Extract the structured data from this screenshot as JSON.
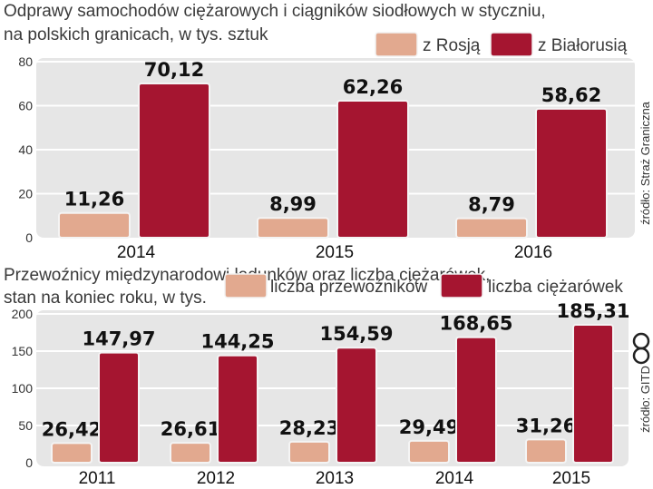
{
  "colors": {
    "russia": "#e2a98f",
    "belarus": "#a51530",
    "panel": "#e6e6e6",
    "grid": "#ffffff"
  },
  "chart_data": [
    {
      "type": "bar",
      "title_lines": [
        "Odprawy samochodów ciężarowych i ciągników siodłowych w styczniu,",
        "na polskich granicach, w tys. sztuk"
      ],
      "categories": [
        "2014",
        "2015",
        "2016"
      ],
      "series": [
        {
          "name": "z Rosją",
          "values": [
            11.26,
            8.99,
            8.79
          ],
          "labels": [
            "11,26",
            "8,99",
            "8,79"
          ]
        },
        {
          "name": "z Białorusią",
          "values": [
            70.12,
            62.26,
            58.62
          ],
          "labels": [
            "70,12",
            "62,26",
            "58,62"
          ]
        }
      ],
      "yticks": [
        "0",
        "20",
        "40",
        "60",
        "80"
      ],
      "ylim": [
        0,
        80
      ],
      "grid": true,
      "legend": "top-right",
      "source": "źródło: Straż Graniczna"
    },
    {
      "type": "bar",
      "title_lines": [
        "Przewoźnicy międzynarodowi ładunków oraz liczba ciężarówek,",
        "stan na koniec roku, w tys."
      ],
      "categories": [
        "2011",
        "2012",
        "2013",
        "2014",
        "2015"
      ],
      "series": [
        {
          "name": "liczba przewoźników",
          "values": [
            26.42,
            26.61,
            28.23,
            29.49,
            31.26
          ],
          "labels": [
            "26,42",
            "26,61",
            "28,23",
            "29,49",
            "31,26"
          ]
        },
        {
          "name": "liczba ciężarówek",
          "values": [
            147.97,
            144.25,
            154.59,
            168.65,
            185.31
          ],
          "labels": [
            "147,97",
            "144,25",
            "154,59",
            "168,65",
            "185,31"
          ]
        }
      ],
      "yticks": [
        "0",
        "50",
        "100",
        "150",
        "200"
      ],
      "ylim": [
        0,
        200
      ],
      "grid": true,
      "legend": "top-right",
      "source": "źródło: GITD"
    }
  ]
}
